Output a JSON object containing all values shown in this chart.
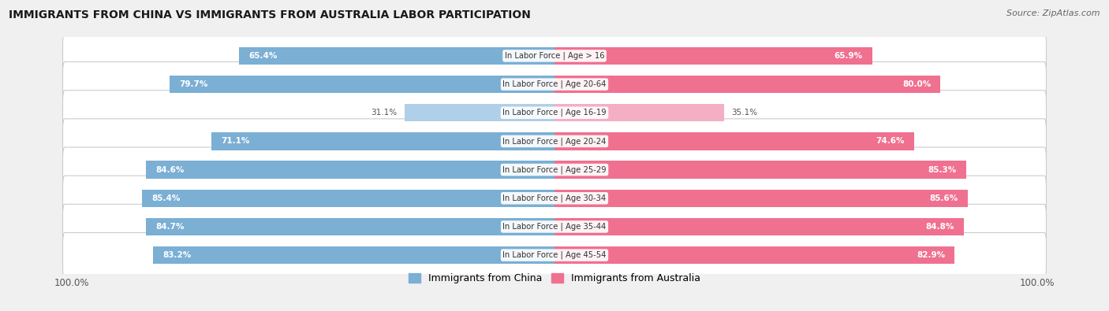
{
  "title": "IMMIGRANTS FROM CHINA VS IMMIGRANTS FROM AUSTRALIA LABOR PARTICIPATION",
  "source": "Source: ZipAtlas.com",
  "categories": [
    "In Labor Force | Age > 16",
    "In Labor Force | Age 20-64",
    "In Labor Force | Age 16-19",
    "In Labor Force | Age 20-24",
    "In Labor Force | Age 25-29",
    "In Labor Force | Age 30-34",
    "In Labor Force | Age 35-44",
    "In Labor Force | Age 45-54"
  ],
  "china_values": [
    65.4,
    79.7,
    31.1,
    71.1,
    84.6,
    85.4,
    84.7,
    83.2
  ],
  "australia_values": [
    65.9,
    80.0,
    35.1,
    74.6,
    85.3,
    85.6,
    84.8,
    82.9
  ],
  "china_color": "#7BAFD4",
  "china_color_light": "#b0cfe8",
  "australia_color": "#F07090",
  "australia_color_light": "#f4afc4",
  "bg_color": "#f0f0f0",
  "legend_china": "Immigrants from China",
  "legend_australia": "Immigrants from Australia",
  "max_val": 100.0,
  "threshold_light": 50
}
